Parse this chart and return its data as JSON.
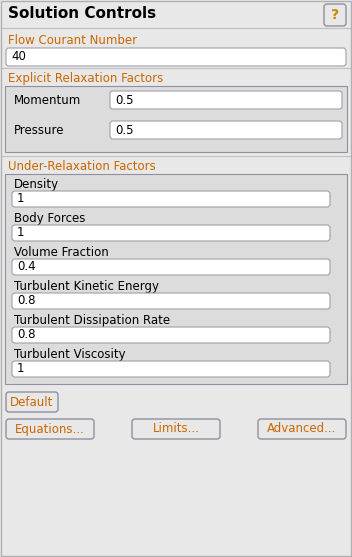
{
  "title": "Solution Controls",
  "bg_color": "#e8e8e8",
  "white": "#ffffff",
  "border_color": "#a0a0a8",
  "section_border": "#9090a0",
  "label_color_orange": "#cc6600",
  "text_color": "#000000",
  "title_color": "#000000",
  "section_inner_bg": "#dcdcdc",
  "flow_courant_label": "Flow Courant Number",
  "flow_courant_value": "40",
  "explicit_section_label": "Explicit Relaxation Factors",
  "explicit_fields": [
    {
      "label": "Momentum",
      "value": "0.5"
    },
    {
      "label": "Pressure",
      "value": "0.5"
    }
  ],
  "under_section_label": "Under-Relaxation Factors",
  "under_fields": [
    {
      "label": "Density",
      "value": "1"
    },
    {
      "label": "Body Forces",
      "value": "1"
    },
    {
      "label": "Volume Fraction",
      "value": "0.4"
    },
    {
      "label": "Turbulent Kinetic Energy",
      "value": "0.8"
    },
    {
      "label": "Turbulent Dissipation Rate",
      "value": "0.8"
    },
    {
      "label": "Turbulent Viscosity",
      "value": "1"
    }
  ],
  "btn_default": "Default",
  "buttons_row2": [
    "Equations...",
    "Limits...",
    "Advanced..."
  ],
  "question_mark_color": "#cc8800",
  "figw": 3.52,
  "figh": 5.57,
  "dpi": 100
}
